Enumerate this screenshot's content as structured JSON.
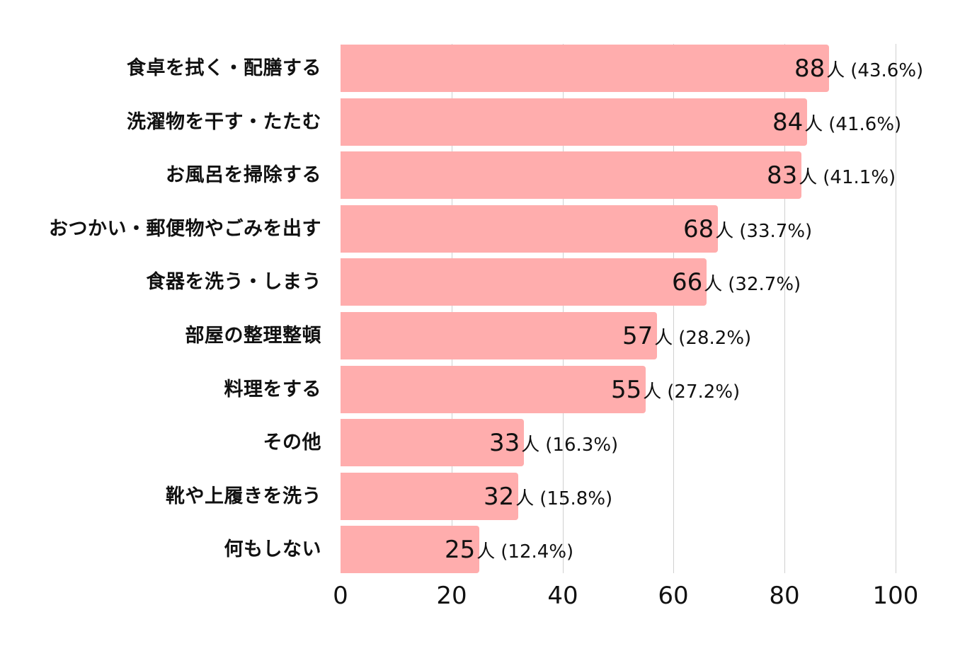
{
  "chart_data": {
    "type": "bar",
    "orientation": "horizontal",
    "title": "",
    "xlabel": "",
    "ylabel": "",
    "xlim": [
      0,
      100
    ],
    "x_ticks": [
      "0",
      "20",
      "40",
      "60",
      "80",
      "100"
    ],
    "grid": true,
    "legend": null,
    "bar_color": "#ffadad",
    "unit": "人",
    "categories": [
      "食卓を拭く・配膳する",
      "洗濯物を干す・たたむ",
      "お風呂を掃除する",
      "おつかい・郵便物やごみを出す",
      "食器を洗う・しまう",
      "部屋の整理整頓",
      "料理をする",
      "その他",
      "靴や上履きを洗う",
      "何もしない"
    ],
    "values": [
      88,
      84,
      83,
      68,
      66,
      57,
      55,
      33,
      32,
      25
    ],
    "percentages": [
      "43.6%",
      "41.6%",
      "41.1%",
      "33.7%",
      "32.7%",
      "28.2%",
      "27.2%",
      "16.3%",
      "15.8%",
      "12.4%"
    ]
  },
  "bars": [
    {
      "label": "食卓を拭く・配膳する",
      "value": "88",
      "unit": "人",
      "pct": "(43.6%)"
    },
    {
      "label": "洗濯物を干す・たたむ",
      "value": "84",
      "unit": "人",
      "pct": "(41.6%)"
    },
    {
      "label": "お風呂を掃除する",
      "value": "83",
      "unit": "人",
      "pct": "(41.1%)"
    },
    {
      "label": "おつかい・郵便物やごみを出す",
      "value": "68",
      "unit": "人",
      "pct": "(33.7%)"
    },
    {
      "label": "食器を洗う・しまう",
      "value": "66",
      "unit": "人",
      "pct": "(32.7%)"
    },
    {
      "label": "部屋の整理整頓",
      "value": "57",
      "unit": "人",
      "pct": "(28.2%)"
    },
    {
      "label": "料理をする",
      "value": "55",
      "unit": "人",
      "pct": "(27.2%)"
    },
    {
      "label": "その他",
      "value": "33",
      "unit": "人",
      "pct": "(16.3%)"
    },
    {
      "label": "靴や上履きを洗う",
      "value": "32",
      "unit": "人",
      "pct": "(15.8%)"
    },
    {
      "label": "何もしない",
      "value": "25",
      "unit": "人",
      "pct": "(12.4%)"
    }
  ],
  "axis": {
    "ticks": [
      "0",
      "20",
      "40",
      "60",
      "80",
      "100"
    ]
  }
}
